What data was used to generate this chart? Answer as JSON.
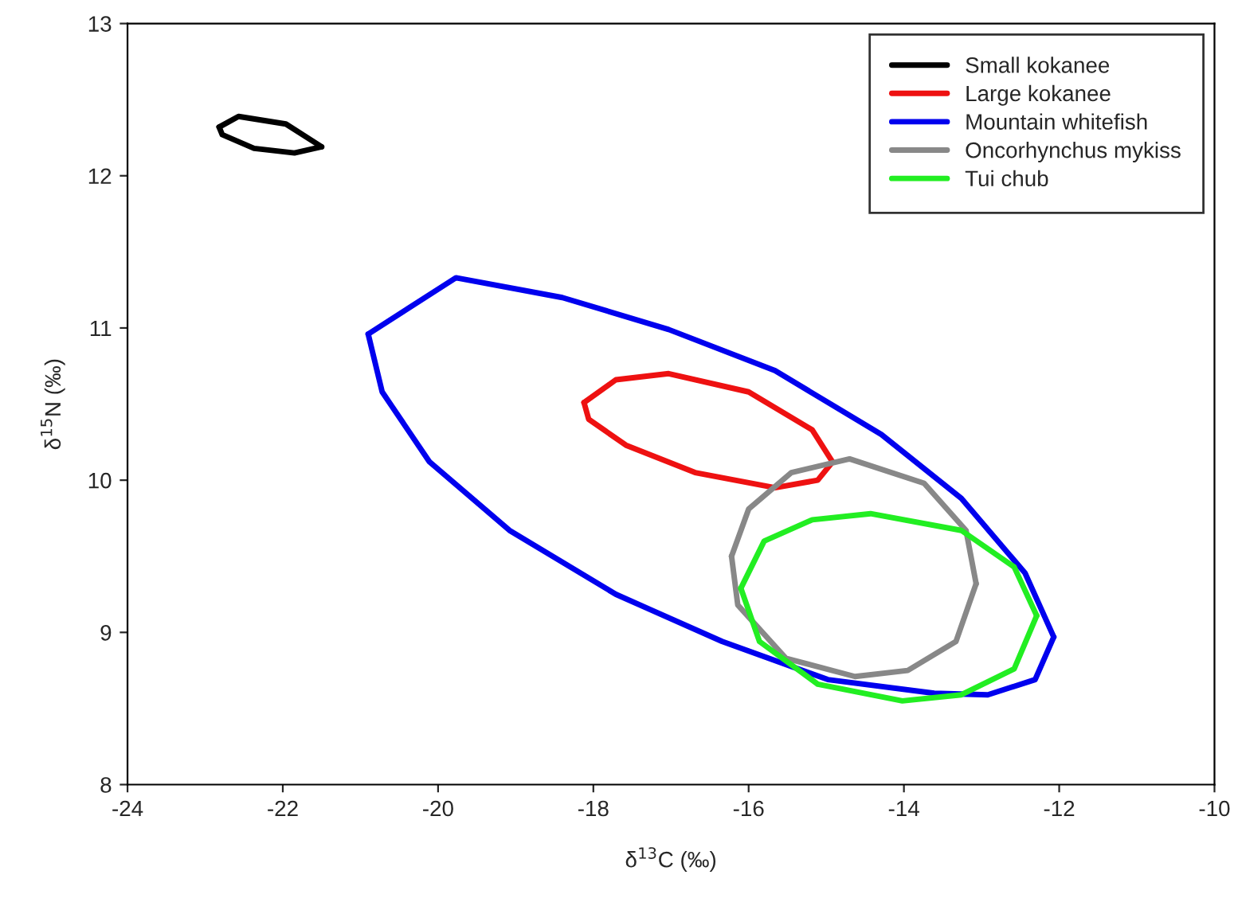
{
  "chart_data": {
    "type": "line",
    "xlabel": "δ$^{13}$C (‰)",
    "ylabel": "δ$^{15}$N (‰)",
    "xlim": [
      -24,
      -10
    ],
    "xticks": [
      -24,
      -22,
      -20,
      -18,
      -16,
      -14,
      -12,
      -10
    ],
    "ylim": [
      8,
      13
    ],
    "yticks": [
      8,
      9,
      10,
      11,
      12,
      13
    ],
    "grid": false,
    "legend": "top right",
    "marker": "none",
    "line_style": "solid",
    "series": [
      {
        "name": "Small kokanee",
        "color": "#000000",
        "x": [
          -22.82,
          -22.57,
          -21.96,
          -21.5
        ],
        "values": [
          12.32,
          12.39,
          12.34,
          12.19
        ]
      },
      {
        "color": "#000000",
        "x": [
          -22.82,
          -22.78,
          -22.37,
          -21.85,
          -21.5
        ],
        "values": [
          12.32,
          12.27,
          12.18,
          12.15,
          12.19
        ]
      },
      {
        "name": "Large kokanee",
        "color": "#ee1111",
        "x": [
          -18.12,
          -17.71,
          -17.03,
          -16.0,
          -15.18,
          -14.92
        ],
        "values": [
          10.51,
          10.66,
          10.7,
          10.58,
          10.33,
          10.12
        ]
      },
      {
        "color": "#ee1111",
        "x": [
          -18.12,
          -18.06,
          -17.58,
          -16.69,
          -15.66,
          -15.11,
          -14.92
        ],
        "values": [
          10.51,
          10.4,
          10.23,
          10.05,
          9.95,
          10.0,
          10.12
        ]
      },
      {
        "name": "Mountain whitefish",
        "color": "#0000ee",
        "x": [
          -20.9,
          -19.77,
          -18.4,
          -17.03,
          -15.66,
          -14.29,
          -13.26,
          -12.44,
          -12.07
        ],
        "values": [
          10.96,
          11.33,
          11.2,
          10.99,
          10.72,
          10.3,
          9.88,
          9.39,
          8.97
        ]
      },
      {
        "color": "#0000ee",
        "x": [
          -20.9,
          -20.72,
          -20.11,
          -19.08,
          -17.71,
          -16.34,
          -14.98,
          -13.61,
          -12.92,
          -12.31,
          -12.07
        ],
        "values": [
          10.96,
          10.58,
          10.12,
          9.67,
          9.25,
          8.94,
          8.69,
          8.6,
          8.59,
          8.69,
          8.97
        ]
      },
      {
        "name": "Oncorhynchus mykiss",
        "color": "#888888",
        "x": [
          -16.22,
          -16.0,
          -15.45,
          -14.7,
          -13.74,
          -13.2,
          -13.07
        ],
        "values": [
          9.5,
          9.81,
          10.05,
          10.14,
          9.98,
          9.67,
          9.32
        ]
      },
      {
        "color": "#888888",
        "x": [
          -16.22,
          -16.14,
          -15.52,
          -14.63,
          -13.95,
          -13.33,
          -13.07
        ],
        "values": [
          9.5,
          9.18,
          8.83,
          8.71,
          8.75,
          8.94,
          9.32
        ]
      },
      {
        "name": "Tui chub",
        "color": "#22ee22",
        "x": [
          -16.1,
          -15.8,
          -15.18,
          -14.43,
          -13.26,
          -12.58,
          -12.29
        ],
        "values": [
          9.29,
          9.6,
          9.74,
          9.78,
          9.67,
          9.43,
          9.11
        ]
      },
      {
        "color": "#22ee22",
        "x": [
          -16.1,
          -15.86,
          -15.11,
          -14.02,
          -13.26,
          -12.58,
          -12.29
        ],
        "values": [
          9.29,
          8.94,
          8.66,
          8.55,
          8.59,
          8.76,
          9.11
        ]
      }
    ]
  }
}
